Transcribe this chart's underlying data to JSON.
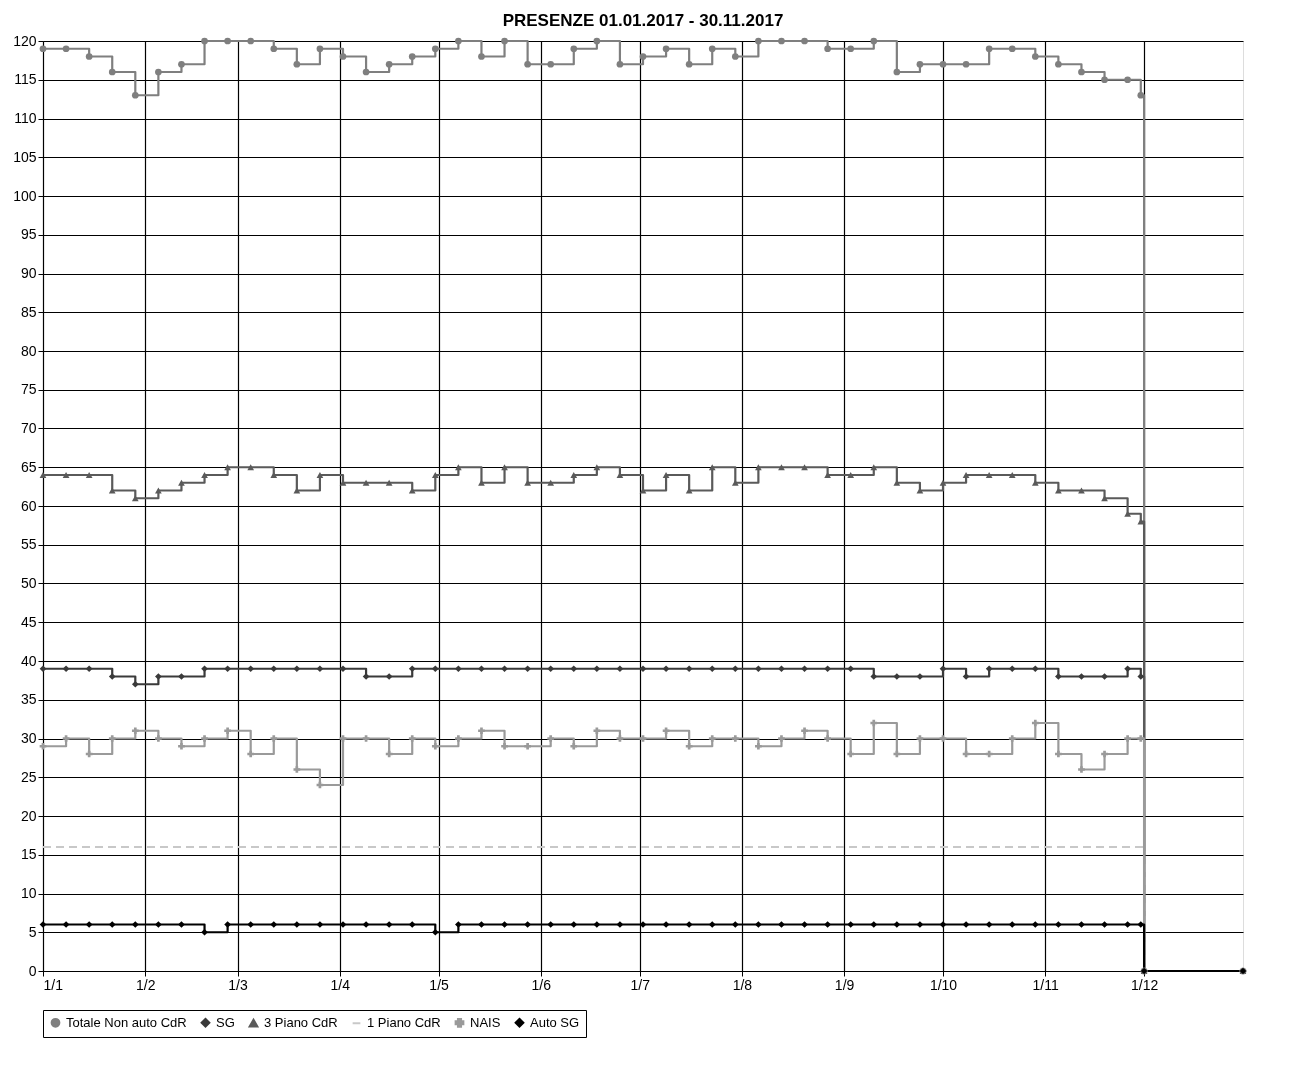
{
  "chart_data": {
    "type": "step",
    "title": "PRESENZE 01.01.2017 - 30.11.2017",
    "x": [
      "2017-01-01",
      "2017-01-08",
      "2017-01-15",
      "2017-01-22",
      "2017-01-29",
      "2017-02-05",
      "2017-02-12",
      "2017-02-19",
      "2017-02-26",
      "2017-03-05",
      "2017-03-12",
      "2017-03-19",
      "2017-03-26",
      "2017-04-02",
      "2017-04-09",
      "2017-04-16",
      "2017-04-23",
      "2017-04-30",
      "2017-05-07",
      "2017-05-14",
      "2017-05-21",
      "2017-05-28",
      "2017-06-04",
      "2017-06-11",
      "2017-06-18",
      "2017-06-25",
      "2017-07-02",
      "2017-07-09",
      "2017-07-16",
      "2017-07-23",
      "2017-07-30",
      "2017-08-06",
      "2017-08-13",
      "2017-08-20",
      "2017-08-27",
      "2017-09-03",
      "2017-09-10",
      "2017-09-17",
      "2017-09-24",
      "2017-10-01",
      "2017-10-08",
      "2017-10-15",
      "2017-10-22",
      "2017-10-29",
      "2017-11-05",
      "2017-11-12",
      "2017-11-19",
      "2017-11-26",
      "2017-11-30",
      "2017-12-01",
      "2017-12-31"
    ],
    "series": [
      {
        "name": "Totale Non auto CdR",
        "color": "#7f7f7f",
        "marker": "circle",
        "line_style": "solid",
        "values": [
          119,
          119,
          118,
          116,
          113,
          116,
          117,
          120,
          120,
          120,
          119,
          117,
          119,
          118,
          116,
          117,
          118,
          119,
          120,
          118,
          120,
          117,
          117,
          119,
          120,
          117,
          118,
          119,
          117,
          119,
          118,
          120,
          120,
          120,
          119,
          119,
          120,
          116,
          117,
          117,
          117,
          119,
          119,
          118,
          117,
          116,
          115,
          115,
          113,
          0,
          0
        ]
      },
      {
        "name": "SG",
        "color": "#3a3a3a",
        "marker": "diamond",
        "line_style": "solid",
        "values": [
          39,
          39,
          39,
          38,
          37,
          38,
          38,
          39,
          39,
          39,
          39,
          39,
          39,
          39,
          38,
          38,
          39,
          39,
          39,
          39,
          39,
          39,
          39,
          39,
          39,
          39,
          39,
          39,
          39,
          39,
          39,
          39,
          39,
          39,
          39,
          39,
          38,
          38,
          38,
          39,
          38,
          39,
          39,
          39,
          38,
          38,
          38,
          39,
          38,
          0,
          0
        ]
      },
      {
        "name": "3 Piano CdR",
        "color": "#5a5a5a",
        "marker": "triangle",
        "line_style": "solid",
        "values": [
          64,
          64,
          64,
          62,
          61,
          62,
          63,
          64,
          65,
          65,
          64,
          62,
          64,
          63,
          63,
          63,
          62,
          64,
          65,
          63,
          65,
          63,
          63,
          64,
          65,
          64,
          62,
          64,
          62,
          65,
          63,
          65,
          65,
          65,
          64,
          64,
          65,
          63,
          62,
          63,
          64,
          64,
          64,
          63,
          62,
          62,
          61,
          59,
          58,
          0,
          0
        ]
      },
      {
        "name": "1 Piano CdR",
        "color": "#c8c8c8",
        "marker": "none",
        "line_style": "dashed",
        "values": [
          16,
          16,
          16,
          16,
          16,
          16,
          16,
          16,
          16,
          16,
          16,
          16,
          16,
          16,
          16,
          16,
          16,
          16,
          16,
          16,
          16,
          16,
          16,
          16,
          16,
          16,
          16,
          16,
          16,
          16,
          16,
          16,
          16,
          16,
          16,
          16,
          16,
          16,
          16,
          16,
          16,
          16,
          16,
          16,
          16,
          16,
          16,
          16,
          16,
          0,
          0
        ]
      },
      {
        "name": "NAIS",
        "color": "#9a9a9a",
        "marker": "cross",
        "line_style": "solid",
        "values": [
          29,
          30,
          28,
          30,
          31,
          30,
          29,
          30,
          31,
          28,
          30,
          26,
          24,
          30,
          30,
          28,
          30,
          29,
          30,
          31,
          29,
          29,
          30,
          29,
          31,
          30,
          30,
          31,
          29,
          30,
          30,
          29,
          30,
          31,
          30,
          28,
          32,
          28,
          30,
          30,
          28,
          28,
          30,
          32,
          28,
          26,
          28,
          30,
          30,
          0,
          0
        ]
      },
      {
        "name": "Auto SG",
        "color": "#000000",
        "marker": "diamond",
        "line_style": "solid",
        "values": [
          6,
          6,
          6,
          6,
          6,
          6,
          6,
          5,
          6,
          6,
          6,
          6,
          6,
          6,
          6,
          6,
          6,
          5,
          6,
          6,
          6,
          6,
          6,
          6,
          6,
          6,
          6,
          6,
          6,
          6,
          6,
          6,
          6,
          6,
          6,
          6,
          6,
          6,
          6,
          6,
          6,
          6,
          6,
          6,
          6,
          6,
          6,
          6,
          6,
          0,
          0
        ]
      }
    ],
    "xlim": [
      "2017-01-01",
      "2017-12-31"
    ],
    "xticks": [
      {
        "value": "2017-01-01",
        "label": "1/1"
      },
      {
        "value": "2017-02-01",
        "label": "1/2"
      },
      {
        "value": "2017-03-01",
        "label": "1/3"
      },
      {
        "value": "2017-04-01",
        "label": "1/4"
      },
      {
        "value": "2017-05-01",
        "label": "1/5"
      },
      {
        "value": "2017-06-01",
        "label": "1/6"
      },
      {
        "value": "2017-07-01",
        "label": "1/7"
      },
      {
        "value": "2017-08-01",
        "label": "1/8"
      },
      {
        "value": "2017-09-01",
        "label": "1/9"
      },
      {
        "value": "2017-10-01",
        "label": "1/10"
      },
      {
        "value": "2017-11-01",
        "label": "1/11"
      },
      {
        "value": "2017-12-01",
        "label": "1/12"
      }
    ],
    "ylim": [
      0,
      120
    ],
    "yticks": [
      0,
      5,
      10,
      15,
      20,
      25,
      30,
      35,
      40,
      45,
      50,
      55,
      60,
      65,
      70,
      75,
      80,
      85,
      90,
      95,
      100,
      105,
      110,
      115,
      120
    ],
    "grid": true,
    "legend": "bottom"
  }
}
